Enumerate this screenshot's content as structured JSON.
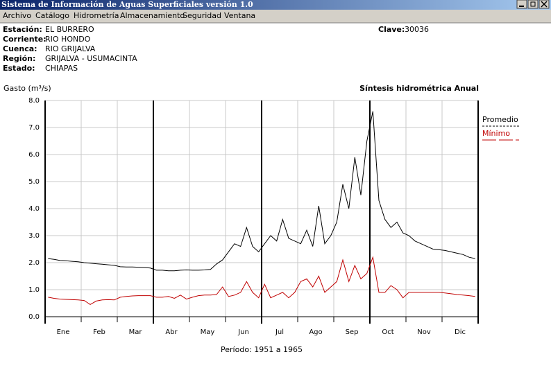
{
  "window": {
    "title": "Sistema de Información de Aguas Superficiales  versión 1.0"
  },
  "menu": [
    "Archivo",
    "Catálogo",
    "Hidrometría",
    "Almacenamiento",
    "Seguridad",
    "Ventana"
  ],
  "station": {
    "fields": [
      {
        "label": "Estación:",
        "value": "EL BURRERO"
      },
      {
        "label": "Corriente:",
        "value": "RIO HONDO"
      },
      {
        "label": "Cuenca:",
        "value": "RIO GRIJALVA"
      },
      {
        "label": "Región:",
        "value": "GRIJALVA - USUMACINTA"
      },
      {
        "label": "Estado:",
        "value": "CHIAPAS"
      }
    ],
    "clave_label": "Clave:",
    "clave_value": "30036"
  },
  "chart_data": {
    "type": "line",
    "title": "Síntesis hidrométrica   Anual",
    "y_label": "Gasto (m³/s)",
    "footer": "Período:  1951 a 1965",
    "categories": [
      "Ene",
      "Feb",
      "Mar",
      "Abr",
      "May",
      "Jun",
      "Jul",
      "Ago",
      "Sep",
      "Oct",
      "Nov",
      "Dic"
    ],
    "ylim": [
      0,
      8
    ],
    "yticks": [
      {
        "value": 0,
        "label": "0.0"
      },
      {
        "value": 1,
        "label": "1.0"
      },
      {
        "value": 2,
        "label": "2.0"
      },
      {
        "value": 3,
        "label": "3.0"
      },
      {
        "value": 4,
        "label": "4.0"
      },
      {
        "value": 5,
        "label": "5.0"
      },
      {
        "value": 6,
        "label": "6.0"
      },
      {
        "value": 7,
        "label": "7.0"
      },
      {
        "value": 8,
        "label": "8.0"
      }
    ],
    "grid": true,
    "legend": "right",
    "series": [
      {
        "name": "Promedio",
        "color": "#000000",
        "values": [
          [
            2.15,
            2.12,
            2.08,
            2.07,
            2.05,
            2.03
          ],
          [
            2.0,
            1.98,
            1.96,
            1.94,
            1.92,
            1.9
          ],
          [
            1.85,
            1.84,
            1.84,
            1.83,
            1.82,
            1.8
          ],
          [
            1.72,
            1.72,
            1.7,
            1.7,
            1.72,
            1.73
          ],
          [
            1.72,
            1.72,
            1.73,
            1.75,
            1.95,
            2.1
          ],
          [
            2.4,
            2.7,
            2.6,
            3.3,
            2.6,
            2.4
          ],
          [
            2.7,
            3.0,
            2.8,
            3.6,
            2.9,
            2.8
          ],
          [
            2.7,
            3.2,
            2.6,
            4.1,
            2.7,
            3.0
          ],
          [
            3.5,
            4.9,
            4.0,
            5.9,
            4.5,
            6.5
          ],
          [
            7.6,
            4.3,
            3.6,
            3.3,
            3.5,
            3.1
          ],
          [
            3.0,
            2.8,
            2.7,
            2.6,
            2.5,
            2.48
          ],
          [
            2.45,
            2.4,
            2.35,
            2.3,
            2.2,
            2.15
          ]
        ]
      },
      {
        "name": "Mínimo",
        "color": "#c00000",
        "values": [
          [
            0.72,
            0.68,
            0.65,
            0.64,
            0.63,
            0.62
          ],
          [
            0.6,
            0.45,
            0.58,
            0.62,
            0.63,
            0.62
          ],
          [
            0.72,
            0.75,
            0.77,
            0.78,
            0.78,
            0.78
          ],
          [
            0.72,
            0.72,
            0.75,
            0.68,
            0.8,
            0.65
          ],
          [
            0.72,
            0.78,
            0.8,
            0.8,
            0.82,
            1.1
          ],
          [
            0.75,
            0.8,
            0.9,
            1.3,
            0.9,
            0.7
          ],
          [
            1.2,
            0.7,
            0.8,
            0.9,
            0.7,
            0.9
          ],
          [
            1.3,
            1.4,
            1.1,
            1.5,
            0.9,
            1.1
          ],
          [
            1.3,
            2.1,
            1.3,
            1.9,
            1.4,
            1.6
          ],
          [
            2.2,
            0.9,
            0.9,
            1.15,
            1.0,
            0.7
          ],
          [
            0.9,
            0.9,
            0.9,
            0.9,
            0.9,
            0.9
          ],
          [
            0.88,
            0.85,
            0.82,
            0.8,
            0.78,
            0.75
          ]
        ]
      }
    ]
  }
}
